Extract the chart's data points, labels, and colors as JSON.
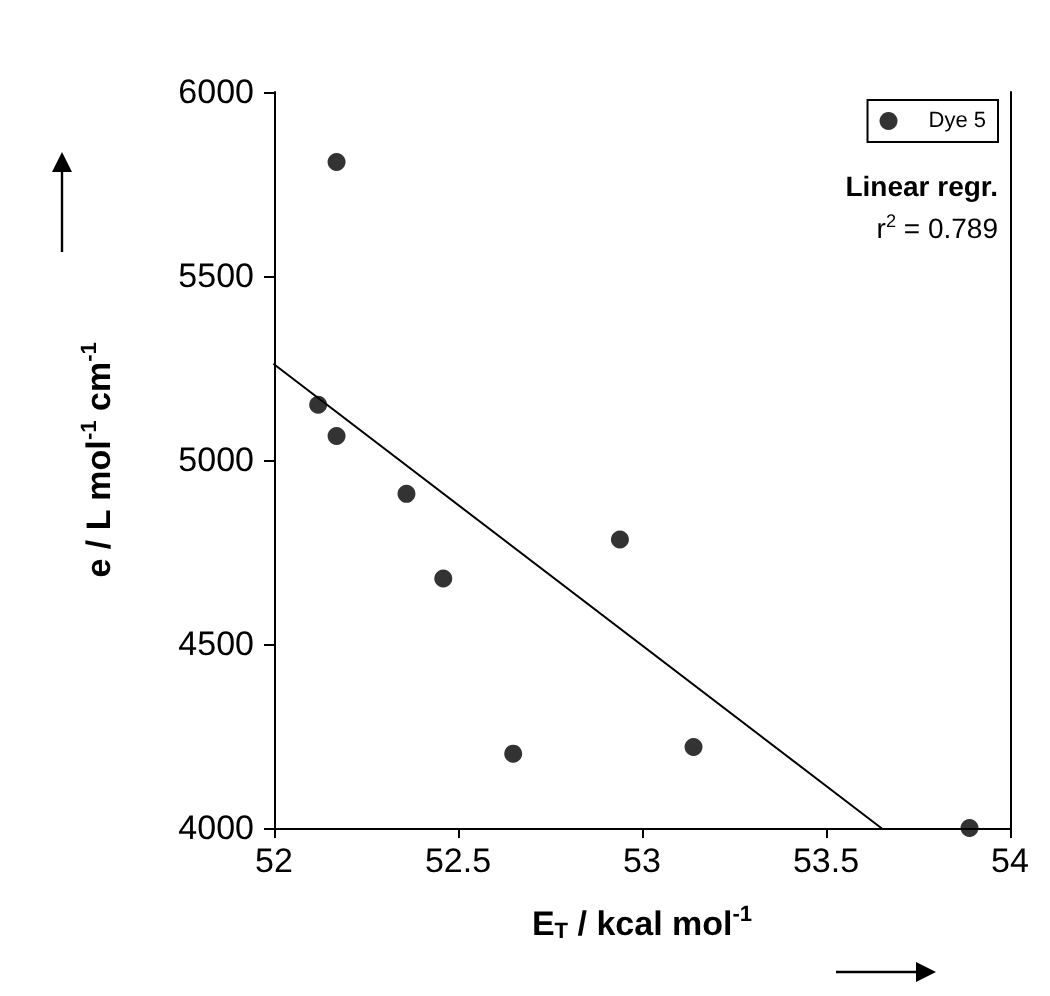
{
  "chart_data": {
    "type": "scatter",
    "xlabel": "E$_{T}$ / kcal mol$^{-1}$",
    "ylabel": "e / L mol$^{-1}$ cm$^{-1}$",
    "annotations": [
      "Linear regr.",
      "r$^{2}$ = 0.789"
    ],
    "xlim": [
      52,
      54
    ],
    "xticks": [
      52,
      52.5,
      53,
      53.5,
      54
    ],
    "ylim": [
      4000,
      6000
    ],
    "yticks": [
      4000,
      4500,
      5000,
      5500,
      6000
    ],
    "legend": "top right",
    "grid": false,
    "marker": "circle",
    "series": [
      {
        "name": "Dye 5",
        "color": "#000000",
        "x": [
          52.17,
          52.12,
          52.17,
          52.36,
          52.46,
          52.65,
          52.94,
          53.14,
          53.89
        ],
        "values": [
          5810,
          5150,
          5065,
          4908,
          4678,
          4202,
          4784,
          4220,
          4000
        ]
      },
      {
        "type": "line",
        "color": "#000000",
        "marker": "none",
        "x": [
          52,
          53.65
        ],
        "values": [
          5260,
          4000
        ]
      }
    ]
  }
}
